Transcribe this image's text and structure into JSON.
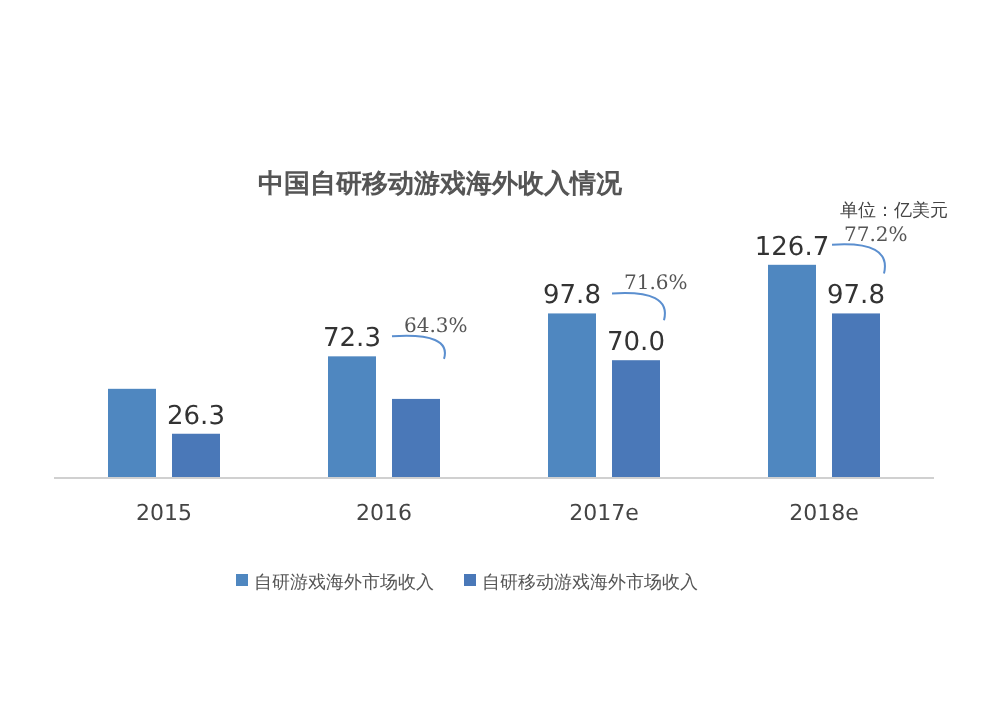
{
  "chart_data": {
    "type": "bar",
    "title": "中国自研移动游戏海外收入情况",
    "subtitle": "单位：亿美元",
    "categories": [
      "2015",
      "2016",
      "2017e",
      "2018e"
    ],
    "series": [
      {
        "name": "自研游戏海外市场收入",
        "color": "#4f87c0",
        "values": [
          53,
          72.3,
          97.8,
          126.7
        ],
        "value_labels": [
          null,
          "72.3",
          "97.8",
          "126.7"
        ]
      },
      {
        "name": "自研移动游戏海外市场收入",
        "color": "#4a78b8",
        "values": [
          26.3,
          47,
          70.0,
          97.8
        ],
        "value_labels": [
          "26.3",
          null,
          "70.0",
          "97.8"
        ]
      }
    ],
    "annotations": [
      {
        "text": "64.3%",
        "x": "2016",
        "y": 72.3
      },
      {
        "text": "71.6%",
        "x": "2017e",
        "y": 97.8
      },
      {
        "text": "77.2%",
        "x": "2018e",
        "y": 126.7
      }
    ],
    "legend": "bottom"
  }
}
